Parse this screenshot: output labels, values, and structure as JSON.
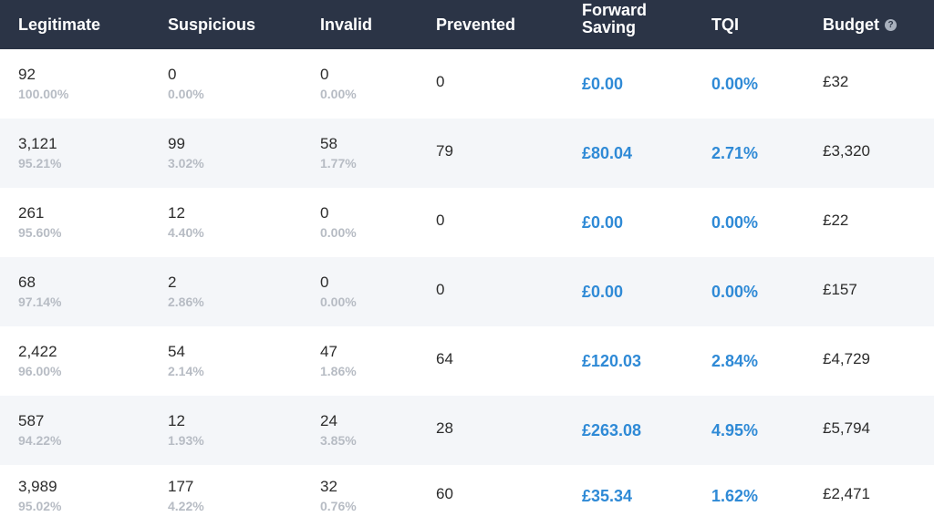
{
  "header": {
    "legitimate": "Legitimate",
    "suspicious": "Suspicious",
    "invalid": "Invalid",
    "prevented": "Prevented",
    "forward_saving_line1": "Forward",
    "forward_saving_line2": "Saving",
    "tqi": "TQI",
    "budget": "Budget",
    "help_icon": "?"
  },
  "rows": [
    {
      "legit": "92",
      "legit_pct": "100.00%",
      "susp": "0",
      "susp_pct": "0.00%",
      "inval": "0",
      "inval_pct": "0.00%",
      "prevented": "0",
      "saving": "£0.00",
      "tqi": "0.00%",
      "budget": "£32"
    },
    {
      "legit": "3,121",
      "legit_pct": "95.21%",
      "susp": "99",
      "susp_pct": "3.02%",
      "inval": "58",
      "inval_pct": "1.77%",
      "prevented": "79",
      "saving": "£80.04",
      "tqi": "2.71%",
      "budget": "£3,320"
    },
    {
      "legit": "261",
      "legit_pct": "95.60%",
      "susp": "12",
      "susp_pct": "4.40%",
      "inval": "0",
      "inval_pct": "0.00%",
      "prevented": "0",
      "saving": "£0.00",
      "tqi": "0.00%",
      "budget": "£22"
    },
    {
      "legit": "68",
      "legit_pct": "97.14%",
      "susp": "2",
      "susp_pct": "2.86%",
      "inval": "0",
      "inval_pct": "0.00%",
      "prevented": "0",
      "saving": "£0.00",
      "tqi": "0.00%",
      "budget": "£157"
    },
    {
      "legit": "2,422",
      "legit_pct": "96.00%",
      "susp": "54",
      "susp_pct": "2.14%",
      "inval": "47",
      "inval_pct": "1.86%",
      "prevented": "64",
      "saving": "£120.03",
      "tqi": "2.84%",
      "budget": "£4,729"
    },
    {
      "legit": "587",
      "legit_pct": "94.22%",
      "susp": "12",
      "susp_pct": "1.93%",
      "inval": "24",
      "inval_pct": "3.85%",
      "prevented": "28",
      "saving": "£263.08",
      "tqi": "4.95%",
      "budget": "£5,794"
    },
    {
      "legit": "3,989",
      "legit_pct": "95.02%",
      "susp": "177",
      "susp_pct": "4.22%",
      "inval": "32",
      "inval_pct": "0.76%",
      "prevented": "60",
      "saving": "£35.34",
      "tqi": "1.62%",
      "budget": "£2,471"
    }
  ],
  "colors": {
    "header_bg": "#2b3446",
    "accent_blue": "#2f8ad6",
    "alt_row_bg": "#f4f6f9",
    "muted_text": "#b7bcc4"
  }
}
